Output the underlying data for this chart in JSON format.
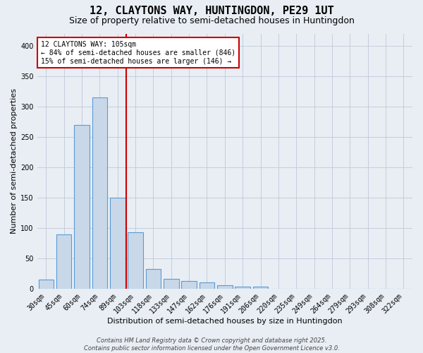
{
  "title": "12, CLAYTONS WAY, HUNTINGDON, PE29 1UT",
  "subtitle": "Size of property relative to semi-detached houses in Huntingdon",
  "xlabel": "Distribution of semi-detached houses by size in Huntingdon",
  "ylabel": "Number of semi-detached properties",
  "bar_values": [
    15,
    90,
    270,
    315,
    150,
    93,
    33,
    16,
    13,
    10,
    6,
    3,
    3,
    0,
    0,
    0,
    0,
    0,
    0,
    0,
    0
  ],
  "categories": [
    "30sqm",
    "45sqm",
    "60sqm",
    "74sqm",
    "89sqm",
    "103sqm",
    "118sqm",
    "133sqm",
    "147sqm",
    "162sqm",
    "176sqm",
    "191sqm",
    "206sqm",
    "220sqm",
    "235sqm",
    "249sqm",
    "264sqm",
    "279sqm",
    "293sqm",
    "308sqm",
    "322sqm"
  ],
  "bar_color": "#c8d8e8",
  "bar_edge_color": "#5b9bd5",
  "grid_color": "#c0c8d8",
  "background_color": "#e8eef4",
  "vline_color": "#cc0000",
  "vline_x": 4.5,
  "annotation_line1": "12 CLAYTONS WAY: 105sqm",
  "annotation_line2": "← 84% of semi-detached houses are smaller (846)",
  "annotation_line3": "15% of semi-detached houses are larger (146) →",
  "annotation_box_color": "#cc0000",
  "annotation_bg": "#ffffff",
  "ylim": [
    0,
    420
  ],
  "yticks": [
    0,
    50,
    100,
    150,
    200,
    250,
    300,
    350,
    400
  ],
  "footer1": "Contains HM Land Registry data © Crown copyright and database right 2025.",
  "footer2": "Contains public sector information licensed under the Open Government Licence v3.0.",
  "title_fontsize": 11,
  "subtitle_fontsize": 9,
  "label_fontsize": 8,
  "tick_fontsize": 7,
  "annotation_fontsize": 7,
  "footer_fontsize": 6
}
